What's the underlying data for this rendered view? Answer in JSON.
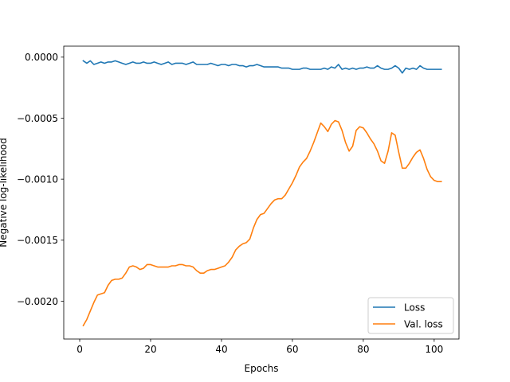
{
  "chart_data": {
    "type": "line",
    "title": "",
    "xlabel": "Epochs",
    "ylabel": "Negative log-likelihood",
    "xlim": [
      -4.5,
      107
    ],
    "ylim": [
      -0.00231,
      9e-05
    ],
    "xticks": [
      0,
      20,
      40,
      60,
      80,
      100
    ],
    "yticks": [
      0,
      -0.0005,
      -0.001,
      -0.0015,
      -0.002
    ],
    "ytick_labels": [
      "0.0000",
      "−0.0005",
      "−0.0010",
      "−0.0015",
      "−0.0020"
    ],
    "grid": false,
    "legend_position": "lower-right",
    "x": [
      1,
      2,
      3,
      4,
      5,
      6,
      7,
      8,
      9,
      10,
      11,
      12,
      13,
      14,
      15,
      16,
      17,
      18,
      19,
      20,
      21,
      22,
      23,
      24,
      25,
      26,
      27,
      28,
      29,
      30,
      31,
      32,
      33,
      34,
      35,
      36,
      37,
      38,
      39,
      40,
      41,
      42,
      43,
      44,
      45,
      46,
      47,
      48,
      49,
      50,
      51,
      52,
      53,
      54,
      55,
      56,
      57,
      58,
      59,
      60,
      61,
      62,
      63,
      64,
      65,
      66,
      67,
      68,
      69,
      70,
      71,
      72,
      73,
      74,
      75,
      76,
      77,
      78,
      79,
      80,
      81,
      82,
      83,
      84,
      85,
      86,
      87,
      88,
      89,
      90,
      91,
      92,
      93,
      94,
      95,
      96,
      97,
      98,
      99,
      100,
      101,
      102
    ],
    "series": [
      {
        "name": "Loss",
        "color": "#1f77b4",
        "values": [
          -3e-05,
          -5e-05,
          -3e-05,
          -6e-05,
          -5e-05,
          -4e-05,
          -5e-05,
          -4e-05,
          -4e-05,
          -3e-05,
          -4e-05,
          -5e-05,
          -6e-05,
          -5e-05,
          -4e-05,
          -5e-05,
          -5e-05,
          -4e-05,
          -5e-05,
          -5e-05,
          -4e-05,
          -5e-05,
          -6e-05,
          -5e-05,
          -4e-05,
          -6e-05,
          -5e-05,
          -5e-05,
          -5e-05,
          -6e-05,
          -5e-05,
          -4e-05,
          -6e-05,
          -6e-05,
          -6e-05,
          -6e-05,
          -5e-05,
          -6e-05,
          -7e-05,
          -6e-05,
          -6e-05,
          -7e-05,
          -6e-05,
          -6e-05,
          -7e-05,
          -7e-05,
          -8e-05,
          -7e-05,
          -7e-05,
          -6e-05,
          -7e-05,
          -8e-05,
          -8e-05,
          -8e-05,
          -8e-05,
          -8e-05,
          -9e-05,
          -9e-05,
          -9e-05,
          -0.0001,
          -0.0001,
          -0.0001,
          -9e-05,
          -9e-05,
          -0.0001,
          -0.0001,
          -0.0001,
          -0.0001,
          -9e-05,
          -0.0001,
          -8e-05,
          -9e-05,
          -6e-05,
          -0.0001,
          -9e-05,
          -0.0001,
          -9e-05,
          -0.0001,
          -9e-05,
          -9e-05,
          -8e-05,
          -9e-05,
          -9e-05,
          -7e-05,
          -9e-05,
          -0.0001,
          -0.0001,
          -9e-05,
          -7e-05,
          -9e-05,
          -0.00013,
          -9e-05,
          -0.0001,
          -9e-05,
          -0.0001,
          -7e-05,
          -9e-05,
          -0.0001,
          -0.0001,
          -0.0001,
          -0.0001,
          -0.0001
        ]
      },
      {
        "name": "Val. loss",
        "color": "#ff7f0e",
        "values": [
          -0.0022,
          -0.00215,
          -0.00208,
          -0.00201,
          -0.00195,
          -0.00194,
          -0.00193,
          -0.00187,
          -0.00183,
          -0.00182,
          -0.00182,
          -0.00181,
          -0.00177,
          -0.00172,
          -0.00171,
          -0.00172,
          -0.00174,
          -0.00173,
          -0.0017,
          -0.0017,
          -0.00171,
          -0.00172,
          -0.00172,
          -0.00172,
          -0.00172,
          -0.00171,
          -0.00171,
          -0.0017,
          -0.0017,
          -0.00171,
          -0.00171,
          -0.00172,
          -0.00175,
          -0.00177,
          -0.00177,
          -0.00175,
          -0.00174,
          -0.00174,
          -0.00173,
          -0.00172,
          -0.00171,
          -0.00168,
          -0.00164,
          -0.00158,
          -0.00155,
          -0.00153,
          -0.00152,
          -0.00149,
          -0.0014,
          -0.00133,
          -0.00129,
          -0.00128,
          -0.00124,
          -0.0012,
          -0.00117,
          -0.00116,
          -0.00116,
          -0.00113,
          -0.00108,
          -0.00103,
          -0.00097,
          -0.0009,
          -0.00086,
          -0.00083,
          -0.00077,
          -0.0007,
          -0.00062,
          -0.00054,
          -0.00057,
          -0.00061,
          -0.00055,
          -0.00052,
          -0.00053,
          -0.0006,
          -0.0007,
          -0.00077,
          -0.00073,
          -0.0006,
          -0.00057,
          -0.00058,
          -0.00062,
          -0.00067,
          -0.00071,
          -0.00077,
          -0.00085,
          -0.00087,
          -0.00077,
          -0.00062,
          -0.00064,
          -0.00078,
          -0.00091,
          -0.00091,
          -0.00087,
          -0.00082,
          -0.00078,
          -0.00076,
          -0.00083,
          -0.00092,
          -0.00098,
          -0.00101,
          -0.00102,
          -0.00102
        ]
      }
    ]
  }
}
